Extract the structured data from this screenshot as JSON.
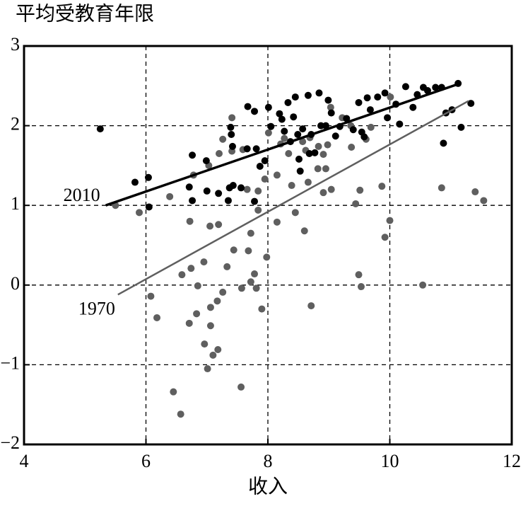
{
  "chart_data": {
    "type": "scatter",
    "title": "平均受教育年限",
    "x_label": "收入",
    "xlim": [
      4,
      12
    ],
    "xticks": [
      4,
      6,
      8,
      10,
      12
    ],
    "ylim": [
      -2,
      3
    ],
    "yticks": [
      {
        "value": -2,
        "label": "−2"
      },
      {
        "value": -1,
        "label": "−1"
      },
      0,
      1,
      2,
      3
    ],
    "grid": true,
    "series": [
      {
        "name": "1970",
        "color": "#5f5f5f",
        "x": [
          5.5,
          5.89,
          6.08,
          6.18,
          6.39,
          6.45,
          6.57,
          6.59,
          6.72,
          6.71,
          6.74,
          6.78,
          6.83,
          6.85,
          6.95,
          6.96,
          7.03,
          7.01,
          7.06,
          7.06,
          7.05,
          7.1,
          7.17,
          7.18,
          7.19,
          7.26,
          7.2,
          7.26,
          7.33,
          7.41,
          7.41,
          7.44,
          7.56,
          7.57,
          7.59,
          7.66,
          7.68,
          7.72,
          7.72,
          7.78,
          7.81,
          7.84,
          7.84,
          7.9,
          7.95,
          7.98,
          8.01,
          8.15,
          8.15,
          8.21,
          8.27,
          8.34,
          8.39,
          8.45,
          8.57,
          8.6,
          8.62,
          8.66,
          8.69,
          8.71,
          8.82,
          8.83,
          8.91,
          8.91,
          8.95,
          8.98,
          9.03,
          9.04,
          9.22,
          9.36,
          9.37,
          9.44,
          9.49,
          9.51,
          9.53,
          9.61,
          9.69,
          9.87,
          9.92,
          10.0,
          10.01,
          10.54,
          10.85,
          11.4,
          11.54
        ],
        "values": [
          1.0,
          0.91,
          -0.14,
          -0.41,
          1.11,
          -1.34,
          -1.62,
          0.13,
          0.8,
          -0.48,
          0.21,
          1.38,
          -0.36,
          -0.01,
          0.29,
          -0.74,
          1.5,
          -1.05,
          -0.28,
          -0.51,
          0.74,
          -0.88,
          -0.2,
          -0.81,
          0.76,
          -0.09,
          1.65,
          1.83,
          0.23,
          2.1,
          1.68,
          0.44,
          -1.28,
          -0.04,
          1.7,
          1.2,
          0.43,
          0.65,
          0.04,
          0.14,
          -0.04,
          1.18,
          0.94,
          -0.3,
          1.33,
          0.35,
          1.91,
          0.79,
          1.38,
          1.77,
          1.84,
          1.65,
          1.25,
          0.91,
          1.8,
          0.68,
          1.69,
          1.29,
          1.85,
          -0.26,
          1.46,
          1.74,
          1.16,
          1.64,
          1.46,
          1.76,
          2.23,
          1.2,
          2.1,
          2.0,
          1.73,
          1.02,
          0.13,
          1.19,
          -0.02,
          1.83,
          1.98,
          1.24,
          0.6,
          0.81,
          2.36,
          0.0,
          1.22,
          1.17,
          1.06
        ],
        "fit": {
          "x": [
            5.54,
            11.29
          ],
          "y": [
            -0.12,
            2.31
          ]
        }
      },
      {
        "name": "2010",
        "color": "#000000",
        "x": [
          5.25,
          5.82,
          6.04,
          6.05,
          6.76,
          6.71,
          6.76,
          6.99,
          7.0,
          7.19,
          7.35,
          7.37,
          7.43,
          7.39,
          7.4,
          7.42,
          7.56,
          7.66,
          7.67,
          7.78,
          7.78,
          7.81,
          7.87,
          7.95,
          8.01,
          8.05,
          8.19,
          8.23,
          8.27,
          8.33,
          8.37,
          8.42,
          8.45,
          8.49,
          8.51,
          8.53,
          8.57,
          8.66,
          8.68,
          8.71,
          8.77,
          8.84,
          8.87,
          8.95,
          8.99,
          9.04,
          9.11,
          9.18,
          9.29,
          9.4,
          9.49,
          9.54,
          9.58,
          9.63,
          9.68,
          9.8,
          9.92,
          9.96,
          10.1,
          10.16,
          10.26,
          10.38,
          10.45,
          10.55,
          10.62,
          10.75,
          10.85,
          10.88,
          10.92,
          11.02,
          11.17,
          11.33,
          11.12
        ],
        "values": [
          1.96,
          1.29,
          1.35,
          0.98,
          1.63,
          1.23,
          1.06,
          1.56,
          1.18,
          1.15,
          1.06,
          1.22,
          1.25,
          1.98,
          1.89,
          1.74,
          1.22,
          1.71,
          2.24,
          2.18,
          1.05,
          1.71,
          1.49,
          1.56,
          2.23,
          1.99,
          2.15,
          2.08,
          1.93,
          2.29,
          1.8,
          2.11,
          2.36,
          1.89,
          1.58,
          1.43,
          1.96,
          2.38,
          1.65,
          1.89,
          1.66,
          2.41,
          2.0,
          2.0,
          2.32,
          2.16,
          1.87,
          1.99,
          2.09,
          1.95,
          2.29,
          1.92,
          1.86,
          2.35,
          2.2,
          2.36,
          2.41,
          2.1,
          2.27,
          2.02,
          2.49,
          2.23,
          2.39,
          2.48,
          2.44,
          2.48,
          2.48,
          1.78,
          2.16,
          2.2,
          1.98,
          2.28,
          2.53
        ],
        "fit": {
          "x": [
            5.34,
            11.15
          ],
          "y": [
            1.0,
            2.53
          ]
        }
      }
    ]
  }
}
